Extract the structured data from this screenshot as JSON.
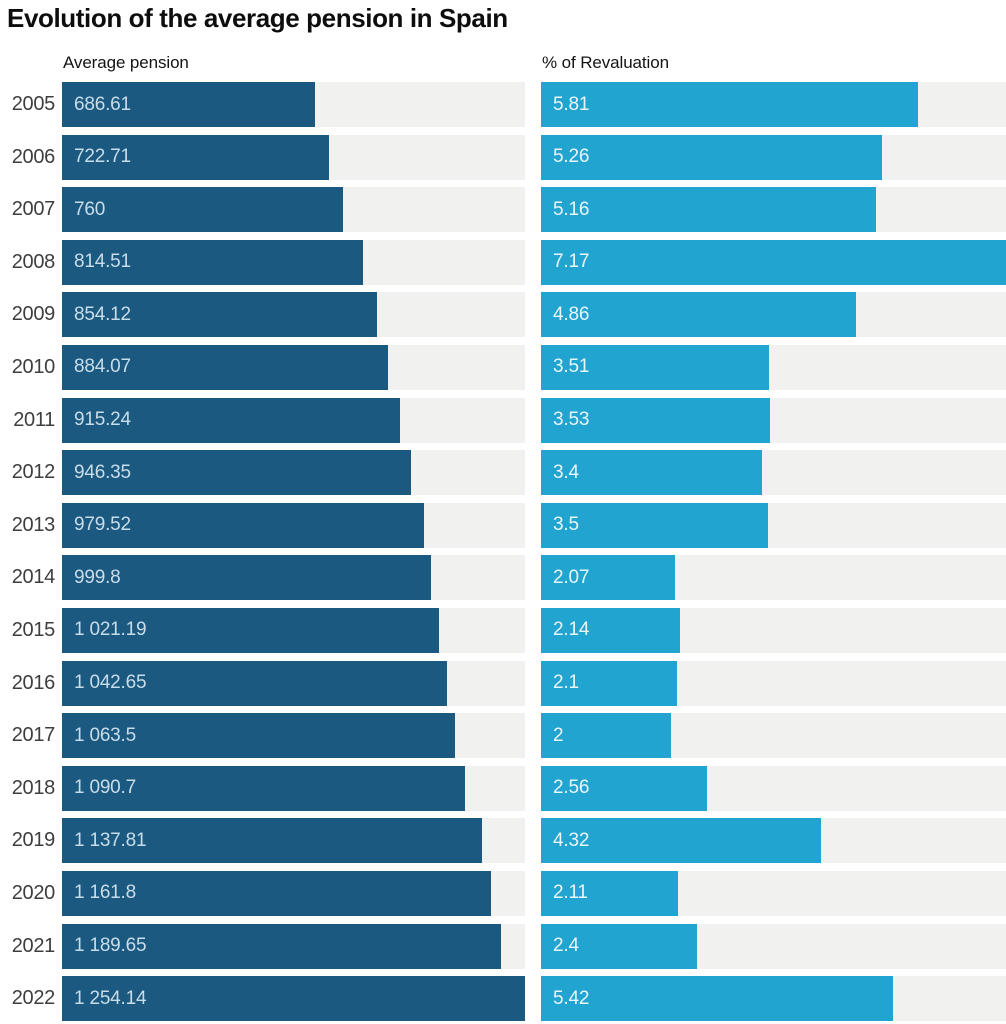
{
  "title": "Evolution of the average pension in Spain",
  "left_header": "Average pension",
  "right_header": "% of Revaluation",
  "colors": {
    "pension_bar": "#1c5980",
    "revaluation_bar": "#22a4d0",
    "track": "#f1f1ef",
    "title_text": "#0d0d0d",
    "year_text": "#3e3e3e",
    "pension_label": "#c8dde9",
    "revaluation_label": "#e9f6fb"
  },
  "chart_data": {
    "type": "bar",
    "orientation": "horizontal",
    "title": "Evolution of the average pension in Spain",
    "grid": false,
    "legend_position": "column-headers",
    "categories": [
      "2005",
      "2006",
      "2007",
      "2008",
      "2009",
      "2010",
      "2011",
      "2012",
      "2013",
      "2014",
      "2015",
      "2016",
      "2017",
      "2018",
      "2019",
      "2020",
      "2021",
      "2022"
    ],
    "series": [
      {
        "name": "Average pension",
        "color": "#1c5980",
        "axis_max": 1254.14,
        "values": [
          686.61,
          722.71,
          760,
          814.51,
          854.12,
          884.07,
          915.24,
          946.35,
          979.52,
          999.8,
          1021.19,
          1042.65,
          1063.5,
          1090.7,
          1137.81,
          1161.8,
          1189.65,
          1254.14
        ],
        "labels": [
          "686.61",
          "722.71",
          "760",
          "814.51",
          "854.12",
          "884.07",
          "915.24",
          "946.35",
          "979.52",
          "999.8",
          "1 021.19",
          "1 042.65",
          "1 063.5",
          "1 090.7",
          "1 137.81",
          "1 161.8",
          "1 189.65",
          "1 254.14"
        ]
      },
      {
        "name": "% of Revaluation",
        "color": "#22a4d0",
        "axis_max": 7.17,
        "values": [
          5.81,
          5.26,
          5.16,
          7.17,
          4.86,
          3.51,
          3.53,
          3.4,
          3.5,
          2.07,
          2.14,
          2.1,
          2,
          2.56,
          4.32,
          2.11,
          2.4,
          5.42
        ],
        "labels": [
          "5.81",
          "5.26",
          "5.16",
          "7.17",
          "4.86",
          "3.51",
          "3.53",
          "3.4",
          "3.5",
          "2.07",
          "2.14",
          "2.1",
          "2",
          "2.56",
          "4.32",
          "2.11",
          "2.4",
          "5.42"
        ]
      }
    ]
  }
}
